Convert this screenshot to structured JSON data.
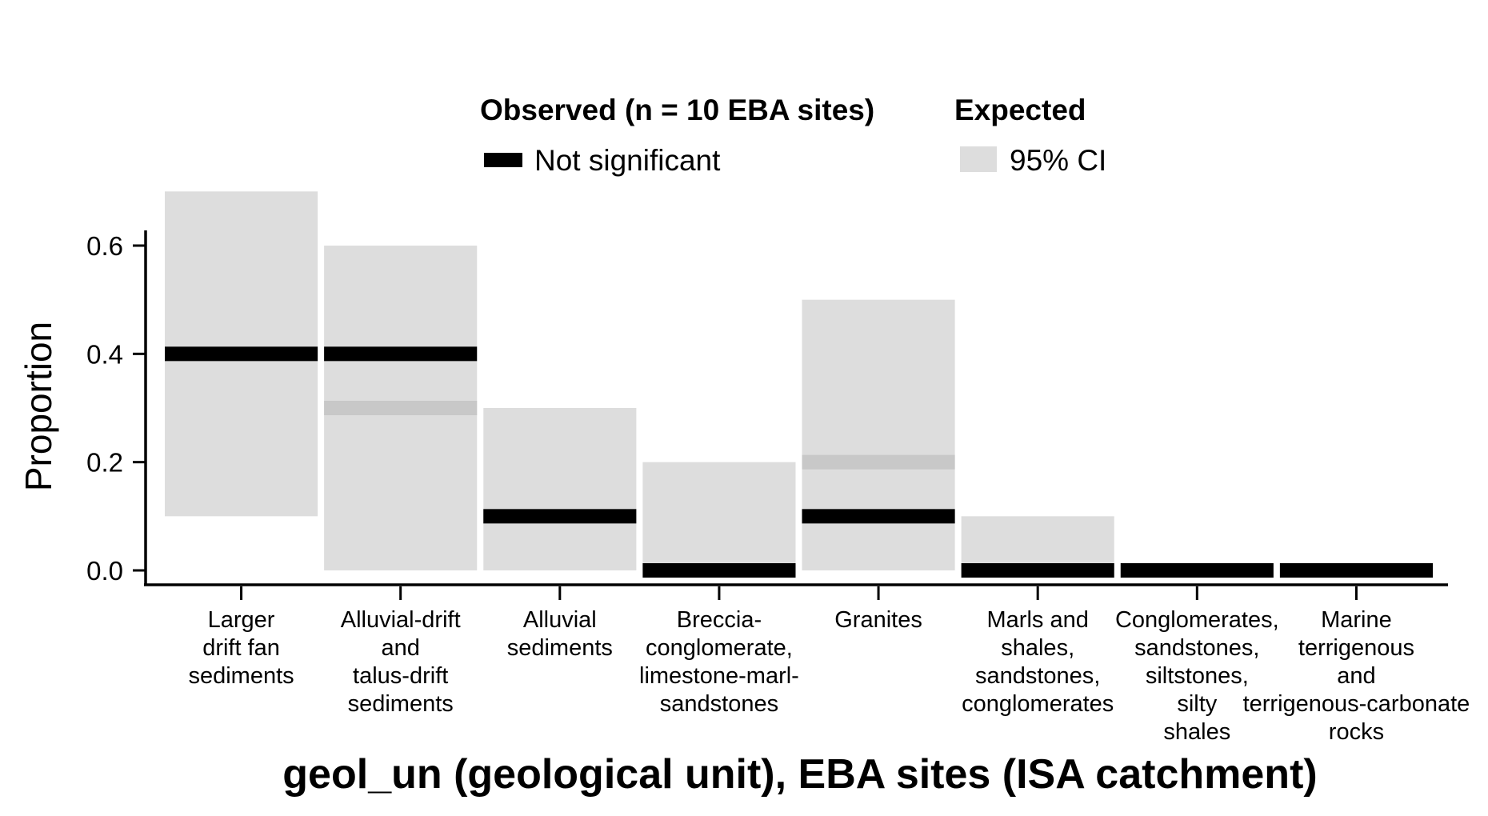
{
  "chart_data": {
    "type": "bar",
    "xlabel": "geol_un (geological unit), EBA sites (ISA catchment)",
    "ylabel": "Proportion",
    "ylim": [
      -0.03,
      0.74
    ],
    "yticks": [
      0.0,
      0.2,
      0.4,
      0.6
    ],
    "ytick_labels": [
      "0.0",
      "0.2",
      "0.4",
      "0.6"
    ],
    "grid": false,
    "legend_position": "top",
    "legend": {
      "observed_title": "Observed (n = 10 EBA sites)",
      "observed_label": "Not significant",
      "expected_title": "Expected",
      "expected_label": "95% CI"
    },
    "categories": [
      [
        "Larger",
        "drift fan",
        "sediments"
      ],
      [
        "Alluvial-drift",
        "and",
        "talus-drift",
        "sediments"
      ],
      [
        "Alluvial",
        "sediments"
      ],
      [
        "Breccia-",
        "conglomerate,",
        "limestone-marl-",
        "sandstones"
      ],
      [
        "Granites"
      ],
      [
        "Marls and",
        "shales,",
        "sandstones,",
        "conglomerates"
      ],
      [
        "Conglomerates,",
        "sandstones,",
        "siltstones,",
        "silty",
        "shales"
      ],
      [
        "Marine",
        "terrigenous",
        "and",
        "terrigenous-carbonate",
        "rocks"
      ]
    ],
    "series": [
      {
        "name": "Not significant",
        "values": [
          0.4,
          0.4,
          0.1,
          0.0,
          0.1,
          0.0,
          0.0,
          0.0
        ]
      },
      {
        "name": "Expected",
        "values": [
          null,
          0.3,
          null,
          null,
          0.2,
          null,
          null,
          null
        ]
      },
      {
        "name": "95% CI",
        "lower": [
          0.1,
          0.0,
          0.0,
          0.0,
          0.0,
          0.0,
          null,
          null
        ],
        "upper": [
          0.7,
          0.6,
          0.3,
          0.2,
          0.5,
          0.1,
          null,
          null
        ]
      }
    ],
    "colors": {
      "observed": "#000000",
      "ci": "#dddddd",
      "expected": "#c8c8c8",
      "axis": "#000000"
    }
  }
}
